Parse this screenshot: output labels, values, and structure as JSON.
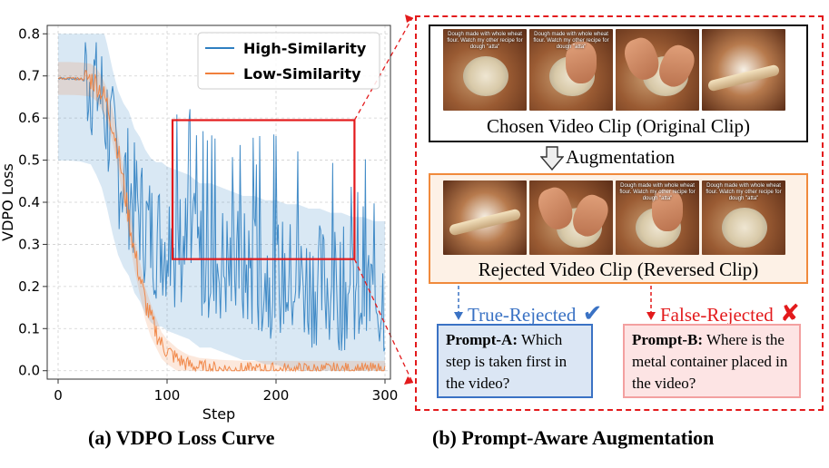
{
  "figure": {
    "caption_a": "(a) VDPO Loss Curve",
    "caption_b": "(b) Prompt-Aware Augmentation"
  },
  "chart_data": {
    "type": "line",
    "title": "",
    "xlabel": "Step",
    "ylabel": "VDPO Loss",
    "xlim": [
      -10,
      305
    ],
    "ylim": [
      -0.02,
      0.82
    ],
    "xticks": [
      0,
      100,
      200,
      300
    ],
    "yticks": [
      0.0,
      0.1,
      0.2,
      0.3,
      0.4,
      0.5,
      0.6,
      0.7,
      0.8
    ],
    "ytick_labels": [
      "0.0",
      "0.1",
      "0.2",
      "0.3",
      "0.4",
      "0.5",
      "0.6",
      "0.7",
      "0.8"
    ],
    "grid": true,
    "legend_position": "top-right",
    "highlight_region": {
      "x": [
        105,
        272
      ],
      "y": [
        0.265,
        0.595
      ]
    },
    "series": [
      {
        "name": "High-Similarity",
        "color": "#2f7fc1",
        "x": [
          0,
          10,
          20,
          30,
          35,
          40,
          45,
          50,
          55,
          60,
          65,
          70,
          75,
          80,
          85,
          90,
          95,
          100,
          110,
          120,
          130,
          140,
          150,
          160,
          170,
          180,
          190,
          200,
          210,
          220,
          230,
          240,
          250,
          260,
          270,
          280,
          290,
          300
        ],
        "values": [
          0.694,
          0.694,
          0.692,
          0.685,
          0.66,
          0.63,
          0.58,
          0.52,
          0.47,
          0.44,
          0.42,
          0.38,
          0.36,
          0.33,
          0.31,
          0.3,
          0.3,
          0.29,
          0.28,
          0.27,
          0.25,
          0.25,
          0.24,
          0.23,
          0.22,
          0.22,
          0.21,
          0.21,
          0.2,
          0.2,
          0.19,
          0.19,
          0.18,
          0.18,
          0.17,
          0.17,
          0.16,
          0.16
        ],
        "noise_amplitude": 0.15
      },
      {
        "name": "Low-Similarity",
        "color": "#f07f3c",
        "x": [
          0,
          10,
          20,
          30,
          35,
          40,
          45,
          50,
          55,
          60,
          65,
          70,
          75,
          80,
          85,
          90,
          95,
          100,
          105,
          110,
          115,
          120,
          130,
          140,
          150,
          160,
          170,
          180,
          200,
          250,
          300
        ],
        "values": [
          0.694,
          0.694,
          0.693,
          0.69,
          0.68,
          0.66,
          0.63,
          0.58,
          0.52,
          0.44,
          0.36,
          0.28,
          0.22,
          0.16,
          0.12,
          0.09,
          0.06,
          0.045,
          0.035,
          0.025,
          0.018,
          0.012,
          0.006,
          0.004,
          0.002,
          0.001,
          0.0,
          0.0,
          0.0,
          0.0,
          0.0
        ],
        "noise_amplitude": 0.03
      }
    ]
  },
  "panel_b": {
    "chosen_label": "Chosen Video Clip (Original Clip)",
    "augmentation_label": "Augmentation",
    "rejected_label": "Rejected Video Clip (Reversed Clip)",
    "frame_caption": "Dough made with whole wheat flour. Watch my other recipe for dough \"atta\"",
    "true_rejected_label": "True-Rejected",
    "false_rejected_label": "False-Rejected",
    "check_glyph": "✔",
    "cross_glyph": "✘",
    "prompt_a_title": "Prompt-A:",
    "prompt_a_text": "Which step is taken first in the video?",
    "prompt_b_title": "Prompt-B:",
    "prompt_b_text": "Where is the metal container placed in the video?",
    "colors": {
      "chosen_border": "#111111",
      "rejected_border": "#f08a3c",
      "rejected_fill": "#fdf1e6",
      "true_color": "#3a72c4",
      "false_color": "#e31a1c",
      "prompt_a_fill": "#dbe6f4",
      "prompt_b_fill": "#fde4e4"
    }
  }
}
